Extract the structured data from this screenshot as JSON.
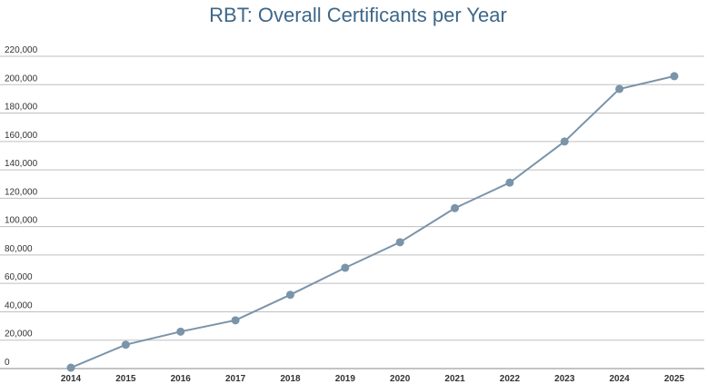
{
  "chart_data": {
    "type": "line",
    "title": "RBT: Overall Certificants per Year",
    "xlabel": "",
    "ylabel": "",
    "x": [
      "2014",
      "2015",
      "2016",
      "2017",
      "2018",
      "2019",
      "2020",
      "2021",
      "2022",
      "2023",
      "2024",
      "2025"
    ],
    "series": [
      {
        "values": [
          600,
          16800,
          26000,
          34000,
          52000,
          71000,
          89000,
          113000,
          131000,
          160000,
          197000,
          206000
        ]
      }
    ],
    "ylim": [
      0,
      220000
    ],
    "yticks": [
      "0",
      "20,000",
      "40,000",
      "60,000",
      "80,000",
      "100,000",
      "120,000",
      "140,000",
      "160,000",
      "180,000",
      "200,000",
      "220,000"
    ],
    "grid": true,
    "legend": "none",
    "colors": {
      "title": "#3e6789",
      "series": "#7a94aa",
      "grid": "#bfbfbf"
    }
  }
}
